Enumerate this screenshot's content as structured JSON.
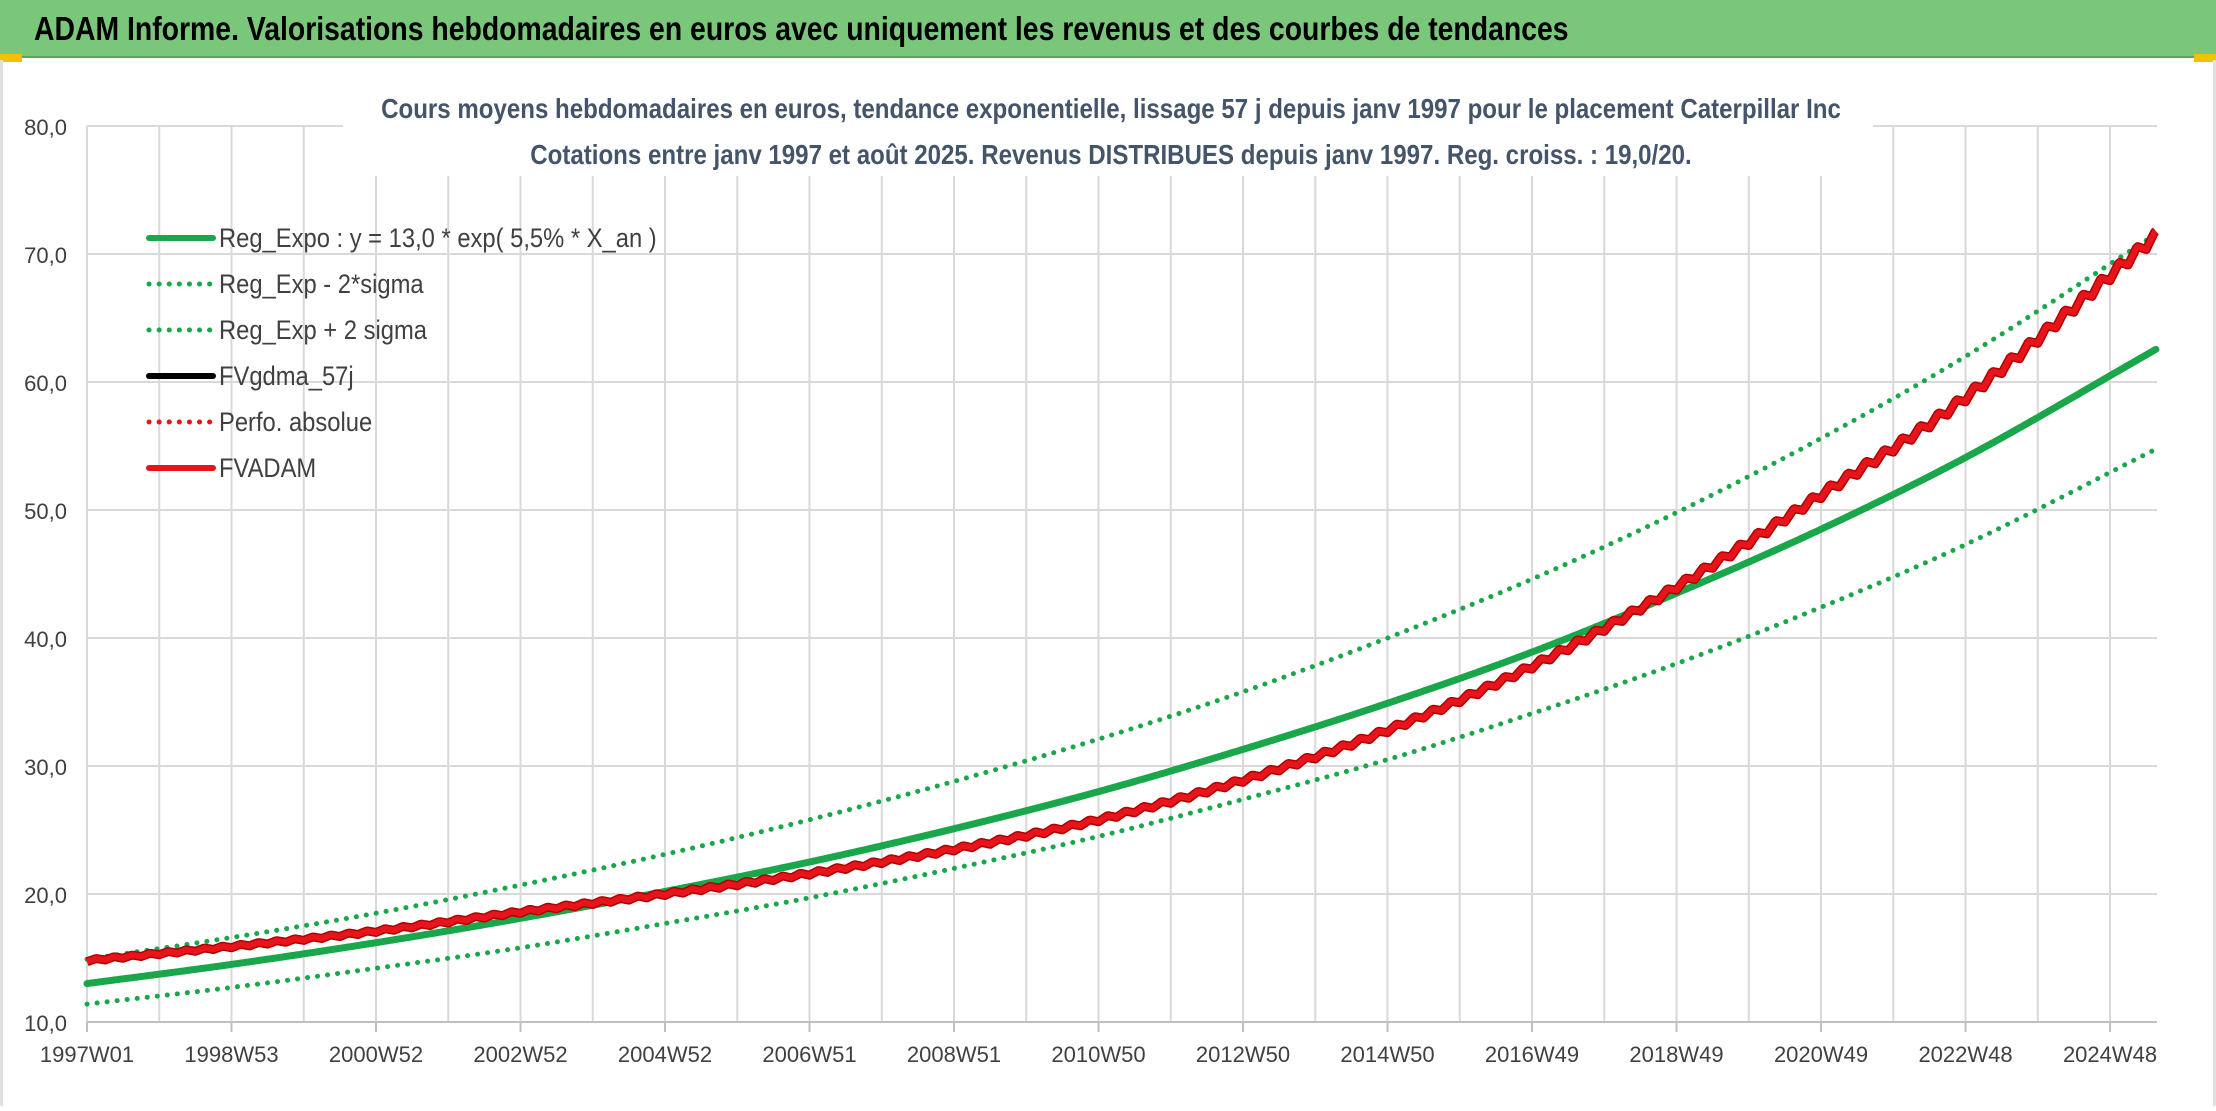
{
  "header": {
    "title": "ADAM Informe. Valorisations hebdomadaires en euros avec uniquement les revenus et des courbes de tendances"
  },
  "chart_data": {
    "type": "line",
    "title": "Cours moyens hebdomadaires en euros, tendance exponentielle, lissage 57 j depuis janv 1997 pour le placement Caterpillar Inc",
    "subtitle": "Cotations entre janv 1997 et août 2025. Revenus DISTRIBUES depuis janv 1997. Reg. croiss. : 19,0/20.",
    "xlabel": "",
    "ylabel": "",
    "xlim": [
      1997.0,
      2025.65
    ],
    "ylim": [
      10,
      80
    ],
    "y_ticks": [
      "10,0",
      "20,0",
      "30,0",
      "40,0",
      "50,0",
      "60,0",
      "70,0",
      "80,0"
    ],
    "x_tick_labels": [
      "1997W01",
      "1998W53",
      "2000W52",
      "2002W52",
      "2004W52",
      "2006W51",
      "2008W51",
      "2010W50",
      "2012W50",
      "2014W50",
      "2016W49",
      "2018W49",
      "2020W49",
      "2022W48",
      "2024W48"
    ],
    "grid": true,
    "legend_position": "top-left",
    "series": [
      {
        "name": "Reg_Expo : y = 13,0 * exp( 5,5% *  X_an )",
        "color": "#1aa64a",
        "style": "solid",
        "x": [
          1997.0,
          1999.0,
          2001.0,
          2003.0,
          2005.0,
          2007.0,
          2009.0,
          2011.0,
          2013.0,
          2015.0,
          2017.0,
          2019.0,
          2021.0,
          2023.0,
          2025.65
        ],
        "values": [
          13.0,
          14.5,
          16.2,
          18.1,
          20.2,
          22.5,
          25.1,
          28.0,
          31.3,
          34.9,
          38.9,
          43.5,
          48.5,
          54.1,
          62.6
        ]
      },
      {
        "name": "Reg_Exp - 2*sigma",
        "color": "#1aa64a",
        "style": "dotted",
        "x": [
          1997.0,
          1999.0,
          2001.0,
          2003.0,
          2005.0,
          2007.0,
          2009.0,
          2011.0,
          2013.0,
          2015.0,
          2017.0,
          2019.0,
          2021.0,
          2023.0,
          2025.65
        ],
        "values": [
          11.4,
          12.7,
          14.2,
          15.8,
          17.7,
          19.7,
          22.0,
          24.5,
          27.4,
          30.5,
          34.1,
          38.0,
          42.4,
          47.3,
          54.8
        ]
      },
      {
        "name": "Reg_Exp + 2 sigma",
        "color": "#1aa64a",
        "style": "dotted",
        "x": [
          1997.0,
          1999.0,
          2001.0,
          2003.0,
          2005.0,
          2007.0,
          2009.0,
          2011.0,
          2013.0,
          2015.0,
          2017.0,
          2019.0,
          2021.0,
          2023.0,
          2025.65
        ],
        "values": [
          14.9,
          16.6,
          18.5,
          20.7,
          23.1,
          25.8,
          28.8,
          32.1,
          35.8,
          40.0,
          44.6,
          49.8,
          55.6,
          62.0,
          71.6
        ]
      },
      {
        "name": "FVgdma_57j",
        "color": "#000000",
        "style": "solid",
        "x": [],
        "values": []
      },
      {
        "name": "Perfo. absolue",
        "color": "#e8141c",
        "style": "dotted",
        "x": [],
        "values": []
      },
      {
        "name": "FVADAM",
        "color": "#e8141c",
        "style": "solid-stepped",
        "x": [
          1997.0,
          1999.0,
          2001.0,
          2003.0,
          2005.0,
          2007.0,
          2009.0,
          2011.0,
          2013.0,
          2015.0,
          2017.0,
          2019.0,
          2021.0,
          2023.0,
          2025.65
        ],
        "values": [
          14.8,
          15.9,
          17.1,
          18.6,
          20.0,
          21.6,
          23.5,
          25.8,
          28.9,
          32.8,
          37.8,
          44.0,
          51.2,
          58.8,
          71.5
        ]
      }
    ]
  }
}
